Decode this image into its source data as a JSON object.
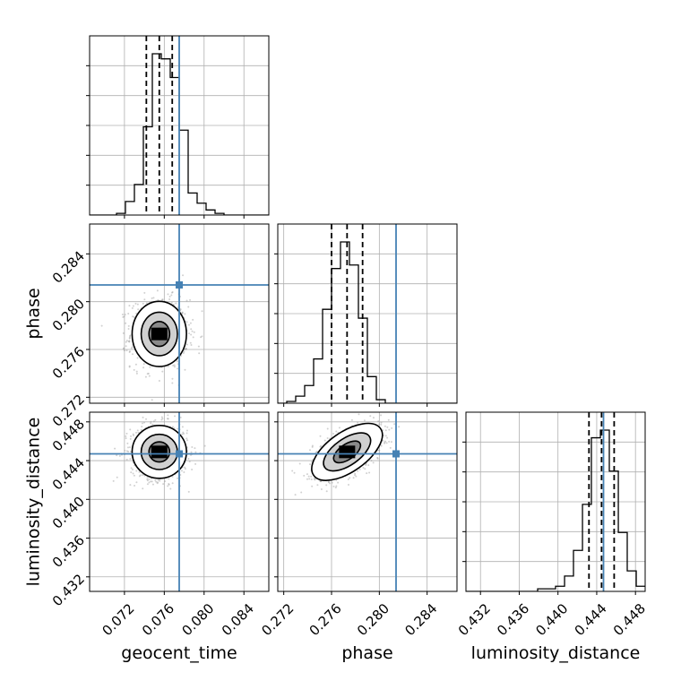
{
  "chart_data": {
    "type": "corner",
    "parameters": [
      "geocent_time",
      "phase",
      "luminosity_distance"
    ],
    "axis_labels": {
      "x": [
        "geocent_time",
        "phase",
        "luminosity_distance"
      ],
      "y": [
        "",
        "phase",
        "luminosity_distance"
      ]
    },
    "ranges": {
      "geocent_time": [
        0.0685,
        0.0865
      ],
      "phase": [
        0.2715,
        0.2865
      ],
      "luminosity_distance": [
        0.4305,
        0.449
      ]
    },
    "ticks": {
      "geocent_time": [
        "0.072",
        "0.076",
        "0.080",
        "0.084"
      ],
      "phase": [
        "0.272",
        "0.276",
        "0.280",
        "0.284"
      ],
      "luminosity_distance": [
        "0.432",
        "0.436",
        "0.440",
        "0.444",
        "0.448"
      ]
    },
    "truths": {
      "geocent_time": 0.0775,
      "phase": 0.2814,
      "luminosity_distance": 0.4447
    },
    "quantiles": {
      "geocent_time": [
        0.0742,
        0.0755,
        0.0768
      ],
      "phase": [
        0.276,
        0.2773,
        0.2786
      ],
      "luminosity_distance": [
        0.4432,
        0.4445,
        0.4458
      ]
    },
    "histograms": {
      "geocent_time": {
        "edges": [
          0.0685,
          0.0694,
          0.0703,
          0.0712,
          0.0721,
          0.073,
          0.0739,
          0.0748,
          0.0757,
          0.0766,
          0.0775,
          0.0784,
          0.0793,
          0.0802,
          0.0811,
          0.082,
          0.0829,
          0.0838,
          0.0847,
          0.0856,
          0.0865
        ],
        "counts": [
          0,
          0,
          0,
          1,
          8,
          18,
          52,
          95,
          92,
          81,
          50,
          13,
          7,
          3,
          1,
          0,
          0,
          0,
          0,
          0
        ]
      },
      "phase": {
        "edges": [
          0.2715,
          0.27225,
          0.273,
          0.27375,
          0.2745,
          0.27525,
          0.276,
          0.27675,
          0.2775,
          0.27825,
          0.279,
          0.27975,
          0.2805,
          0.28125,
          0.282,
          0.28275,
          0.2835,
          0.28425,
          0.285,
          0.28575,
          0.2865
        ],
        "counts": [
          0,
          1,
          4,
          10,
          25,
          53,
          76,
          91,
          78,
          48,
          15,
          2,
          0,
          0,
          0,
          0,
          0,
          0,
          0,
          0
        ]
      },
      "luminosity_distance": {
        "edges": [
          0.4305,
          0.43143,
          0.43235,
          0.43328,
          0.4342,
          0.43513,
          0.43605,
          0.43698,
          0.4379,
          0.43883,
          0.43975,
          0.44068,
          0.4416,
          0.44253,
          0.44345,
          0.44438,
          0.4453,
          0.44623,
          0.44715,
          0.44808,
          0.449
        ],
        "counts": [
          0,
          0,
          0,
          0,
          0,
          0,
          0,
          0,
          1,
          1,
          2,
          6,
          16,
          34,
          60,
          63,
          47,
          23,
          8,
          2
        ]
      }
    },
    "density_peaks": [
      {
        "x": "geocent_time",
        "y": "phase",
        "x_mean": 0.0755,
        "y_mean": 0.2773
      },
      {
        "x": "geocent_time",
        "y": "luminosity_distance",
        "x_mean": 0.0755,
        "y_mean": 0.4449
      },
      {
        "x": "phase",
        "y": "luminosity_distance",
        "x_mean": 0.2773,
        "y_mean": 0.4449
      }
    ],
    "colors": {
      "truth": "#4682b4",
      "hist": "#000000",
      "grid": "#b0b0b0",
      "points": "#9a9a9a"
    },
    "grid": true
  }
}
